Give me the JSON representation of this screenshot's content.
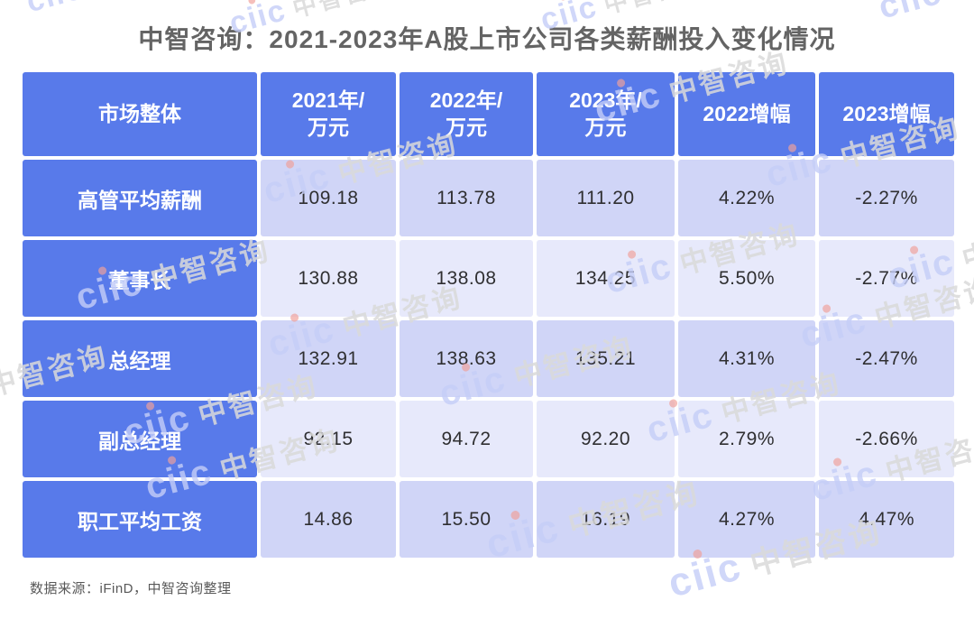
{
  "page": {
    "title": "中智咨询：2021-2023年A股上市公司各类薪酬投入变化情况",
    "source_note": "数据来源：iFinD，中智咨询整理"
  },
  "watermark": {
    "logo_text": "ciic",
    "brand_text": "中智咨询"
  },
  "colors": {
    "header_blue": "#587AEA",
    "row_dark": "#D0D5F7",
    "row_light": "#E7E9FB",
    "title_gray": "#646464",
    "watermark_blue": "#C5CEF8",
    "watermark_gray": "#DADADA",
    "watermark_dot_red": "#F0A19B"
  },
  "table": {
    "corner_header": "市场整体",
    "col_headers": [
      "2021年/\n万元",
      "2022年/\n万元",
      "2023年/\n万元",
      "2022增幅",
      "2023增幅"
    ]
  },
  "chart_data": {
    "type": "table",
    "title": "中智咨询：2021-2023年A股上市公司各类薪酬投入变化情况",
    "columns": [
      "市场整体",
      "2021年/万元",
      "2022年/万元",
      "2023年/万元",
      "2022增幅",
      "2023增幅"
    ],
    "rows": [
      {
        "label": "高管平均薪酬",
        "values": [
          "109.18",
          "113.78",
          "111.20",
          "4.22%",
          "-2.27%"
        ]
      },
      {
        "label": "董事长",
        "values": [
          "130.88",
          "138.08",
          "134.25",
          "5.50%",
          "-2.77%"
        ]
      },
      {
        "label": "总经理",
        "values": [
          "132.91",
          "138.63",
          "135.21",
          "4.31%",
          "-2.47%"
        ]
      },
      {
        "label": "副总经理",
        "values": [
          "92.15",
          "94.72",
          "92.20",
          "2.79%",
          "-2.66%"
        ]
      },
      {
        "label": "职工平均工资",
        "values": [
          "14.86",
          "15.50",
          "16.19",
          "4.27%",
          "4.47%"
        ]
      }
    ],
    "source": "数据来源：iFinD，中智咨询整理"
  }
}
